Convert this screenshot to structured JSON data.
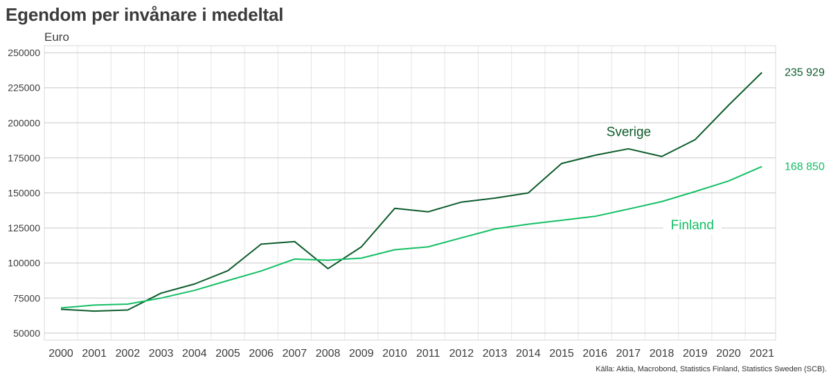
{
  "title": "Egendom per invånare i medeltal",
  "unit": "Euro",
  "source": "Källa: Aktia, Macrobond, Statistics Finland, Statistics Sweden (SCB).",
  "colors": {
    "sverige": "#0b5a2a",
    "finland": "#12bf64",
    "grid": "#c8c8c8",
    "minorGrid": "#e6e6e6"
  },
  "chart_data": {
    "type": "line",
    "title": "Egendom per invånare i medeltal",
    "ylabel": "Euro",
    "xlabel": "",
    "ylim": [
      45000,
      255000
    ],
    "yticks": [
      50000,
      75000,
      100000,
      125000,
      150000,
      175000,
      200000,
      225000,
      250000
    ],
    "x": [
      "2000",
      "2001",
      "2002",
      "2003",
      "2004",
      "2005",
      "2006",
      "2007",
      "2008",
      "2009",
      "2010",
      "2011",
      "2012",
      "2013",
      "2014",
      "2015",
      "2016",
      "2017",
      "2018",
      "2019",
      "2020",
      "2021"
    ],
    "grid": true,
    "series": [
      {
        "name": "Sverige",
        "color": "#0b5a2a",
        "values": [
          67000,
          65700,
          66500,
          78500,
          85000,
          94500,
          113500,
          115300,
          96000,
          111500,
          139000,
          136500,
          143500,
          146300,
          150000,
          171000,
          176900,
          181500,
          176000,
          188000,
          212500,
          235929
        ],
        "end_label": "235 929"
      },
      {
        "name": "Finland",
        "color": "#12bf64",
        "values": [
          68000,
          70000,
          70700,
          75000,
          80500,
          87500,
          94300,
          102800,
          102000,
          103500,
          109500,
          111500,
          118000,
          124300,
          127700,
          130500,
          133300,
          138500,
          143800,
          151000,
          158500,
          168850
        ],
        "end_label": "168 850"
      }
    ]
  }
}
